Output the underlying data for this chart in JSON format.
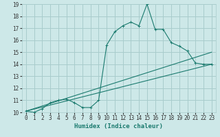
{
  "xlabel": "Humidex (Indice chaleur)",
  "x": [
    0,
    1,
    2,
    3,
    4,
    5,
    6,
    7,
    8,
    9,
    10,
    11,
    12,
    13,
    14,
    15,
    16,
    17,
    18,
    19,
    20,
    21,
    22,
    23
  ],
  "line1": [
    10.1,
    10.0,
    10.3,
    10.8,
    11.0,
    11.1,
    10.8,
    10.4,
    10.4,
    11.0,
    15.6,
    16.7,
    17.2,
    17.5,
    17.2,
    19.0,
    16.9,
    16.9,
    15.8,
    15.5,
    15.1,
    14.1,
    14.0,
    14.0
  ],
  "line2_x": [
    0,
    23
  ],
  "line2_y": [
    10.1,
    15.0
  ],
  "line3_x": [
    0,
    23
  ],
  "line3_y": [
    10.1,
    14.0
  ],
  "bg_color": "#cde8e8",
  "grid_color": "#a8cccc",
  "line_color": "#1a7a6e",
  "ylim": [
    10,
    19
  ],
  "xlim": [
    -0.5,
    23.5
  ],
  "yticks": [
    10,
    11,
    12,
    13,
    14,
    15,
    16,
    17,
    18,
    19
  ],
  "xticks": [
    0,
    1,
    2,
    3,
    4,
    5,
    6,
    7,
    8,
    9,
    10,
    11,
    12,
    13,
    14,
    15,
    16,
    17,
    18,
    19,
    20,
    21,
    22,
    23
  ],
  "tick_fontsize": 5.5,
  "xlabel_fontsize": 6.5
}
